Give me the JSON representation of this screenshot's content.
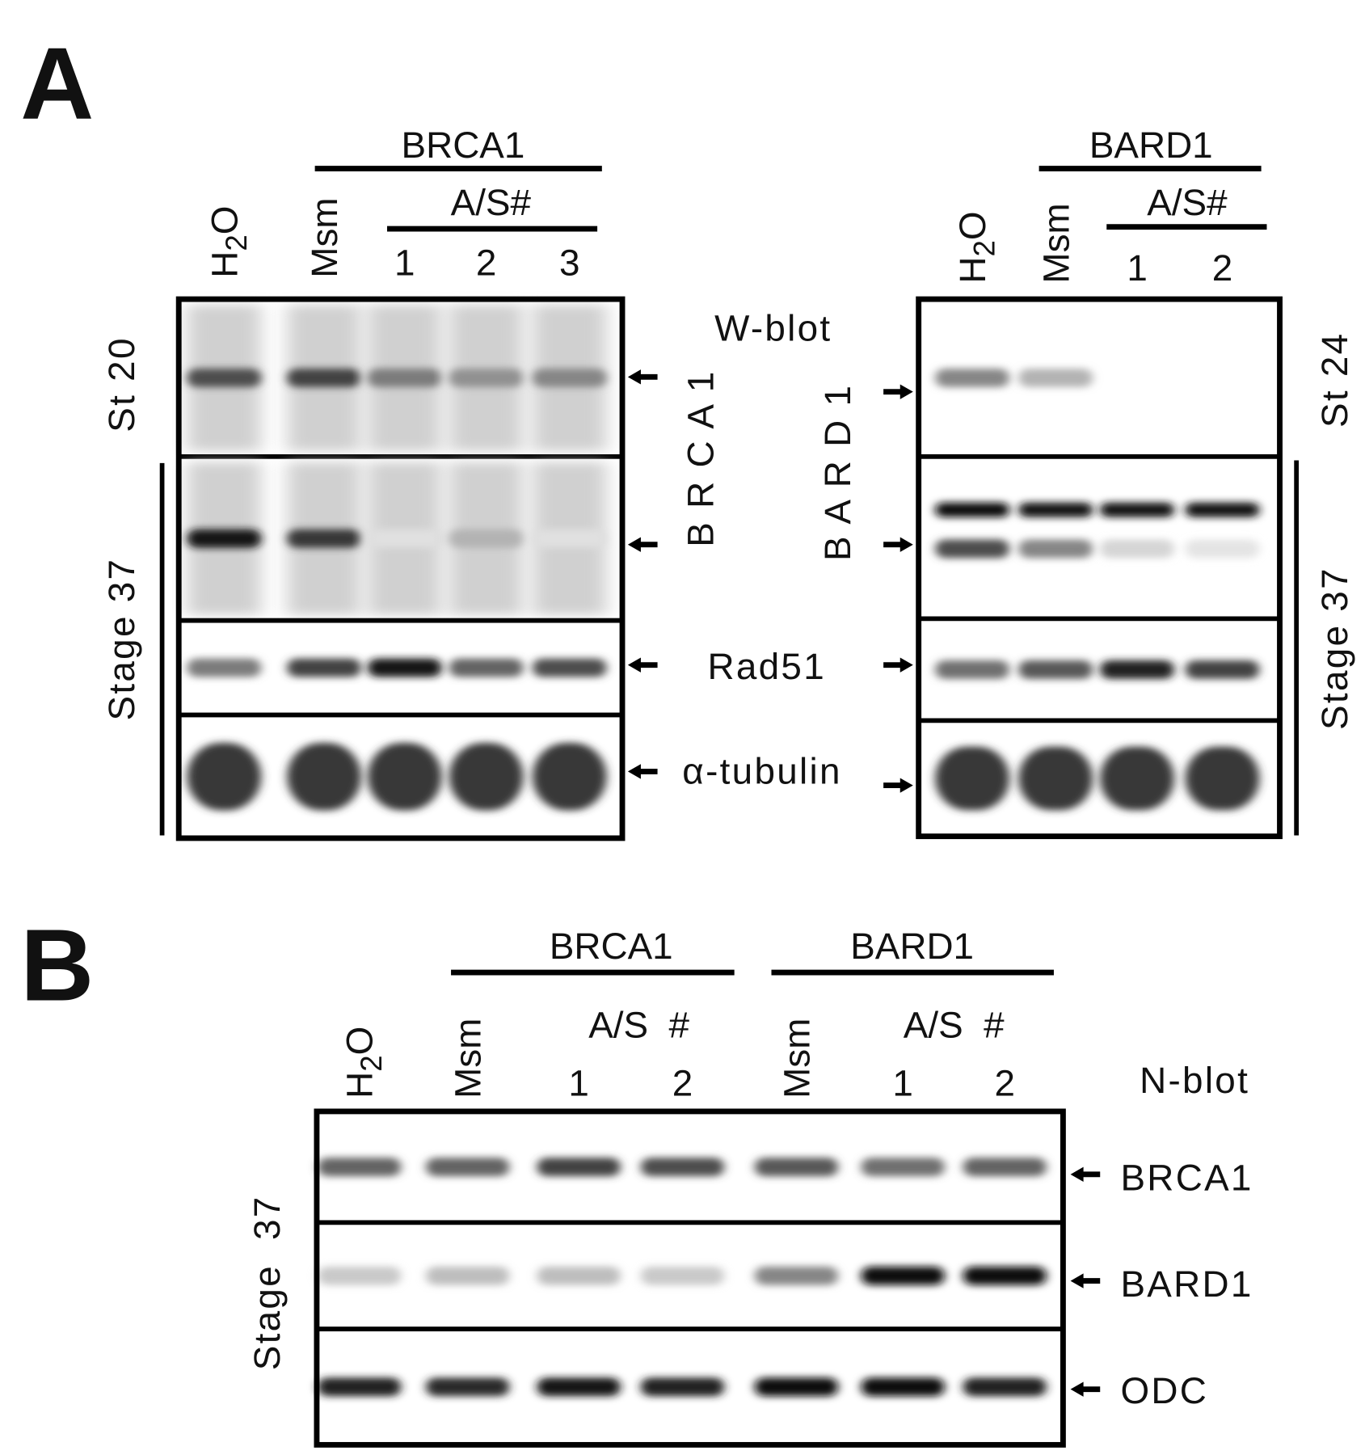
{
  "panel_a": {
    "label": "A",
    "left": {
      "group": "BRCA1",
      "subgroup": "A/S#",
      "lanes": [
        "H2O",
        "Msm",
        "1",
        "2",
        "3"
      ],
      "stage_top": "St 20",
      "stage_bottom": "Stage 37",
      "rows": [
        {
          "name": "BRCA1 St 20",
          "intensity": [
            0.7,
            0.75,
            0.5,
            0.4,
            0.45
          ],
          "smear": true
        },
        {
          "name": "BRCA1 Stage 37",
          "intensity": [
            0.95,
            0.8,
            0.05,
            0.25,
            0.05
          ],
          "smear": true
        },
        {
          "name": "Rad51",
          "intensity": [
            0.5,
            0.75,
            0.95,
            0.6,
            0.7
          ]
        },
        {
          "name": "alpha-tubulin",
          "intensity": [
            0.8,
            0.8,
            0.8,
            0.8,
            0.8
          ],
          "fat": true
        }
      ]
    },
    "right": {
      "group": "BARD1",
      "subgroup": "A/S#",
      "lanes": [
        "H2O",
        "Msm",
        "1",
        "2"
      ],
      "stage_top": "St 24",
      "stage_bottom": "Stage 37",
      "rows": [
        {
          "name": "BARD1 St 24",
          "intensity": [
            0.45,
            0.25,
            0,
            0
          ]
        },
        {
          "name": "BARD1 Stage 37",
          "intensity": [
            0.7,
            0.45,
            0.1,
            0.03
          ],
          "upper_band": [
            1,
            0.95,
            0.95,
            0.95
          ]
        },
        {
          "name": "Rad51",
          "intensity": [
            0.55,
            0.65,
            0.9,
            0.75
          ]
        },
        {
          "name": "alpha-tubulin",
          "intensity": [
            0.8,
            0.8,
            0.8,
            0.8
          ],
          "fat": true
        }
      ]
    },
    "method": "W-blot",
    "protein_labels": {
      "brca1": "B R C A 1",
      "bard1": "B A R D 1",
      "rad51": "Rad51",
      "tubulin": "α-tubulin"
    }
  },
  "panel_b": {
    "label": "B",
    "groups": [
      "BRCA1",
      "BARD1"
    ],
    "subgroup": "A/S  #",
    "lanes": [
      "H2O",
      "Msm",
      "1",
      "2",
      "Msm",
      "1",
      "2"
    ],
    "method": "N-blot",
    "stage": "Stage  37",
    "rows": [
      {
        "name": "BRCA1",
        "intensity": [
          0.6,
          0.6,
          0.75,
          0.7,
          0.65,
          0.55,
          0.6
        ]
      },
      {
        "name": "BARD1",
        "intensity": [
          0.15,
          0.2,
          0.2,
          0.15,
          0.45,
          1,
          1
        ]
      },
      {
        "name": "ODC",
        "intensity": [
          0.9,
          0.85,
          0.95,
          0.9,
          1,
          1,
          0.9
        ]
      }
    ]
  }
}
